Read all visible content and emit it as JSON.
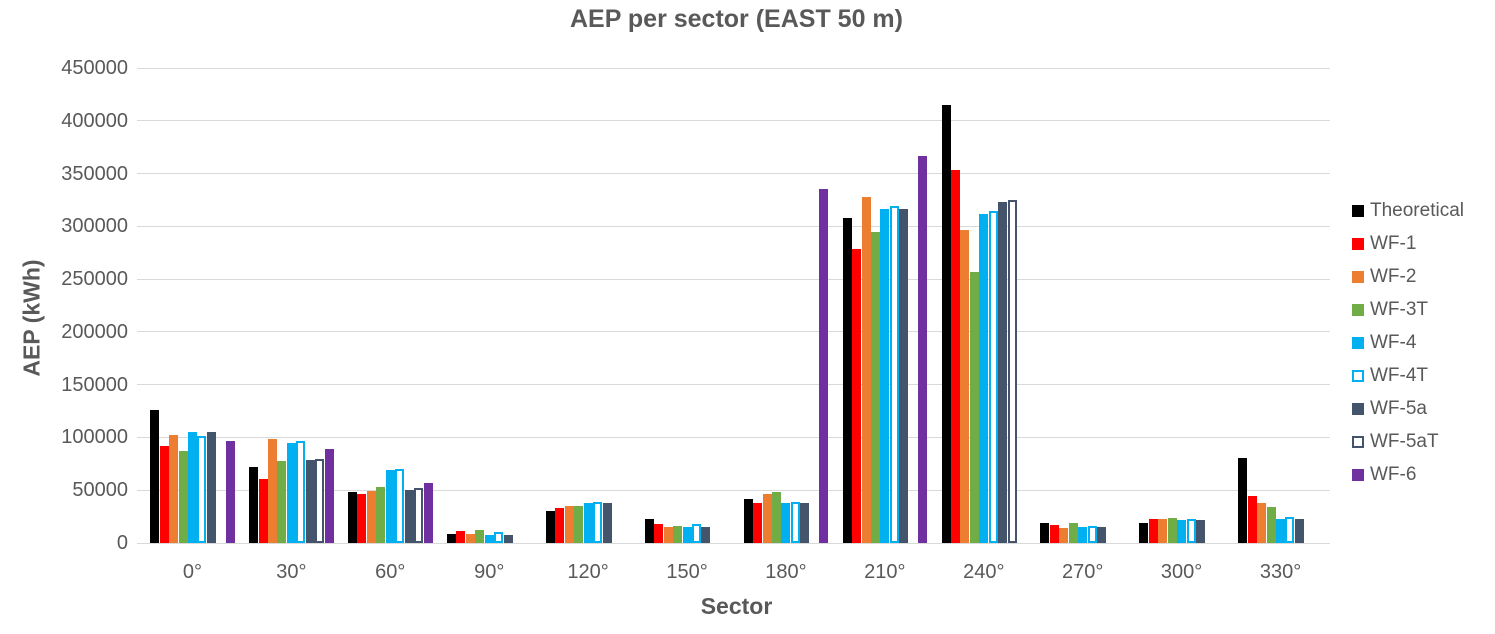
{
  "chart_data": {
    "type": "bar",
    "title": "AEP per sector (EAST 50 m)",
    "xlabel": "Sector",
    "ylabel": "AEP (kWh)",
    "ylim": [
      0,
      450000
    ],
    "yticks": [
      0,
      50000,
      100000,
      150000,
      200000,
      250000,
      300000,
      350000,
      400000,
      450000
    ],
    "grid": true,
    "legend_position": "right",
    "categories": [
      "0°",
      "30°",
      "60°",
      "90°",
      "120°",
      "150°",
      "180°",
      "210°",
      "240°",
      "270°",
      "300°",
      "330°"
    ],
    "series": [
      {
        "name": "Theoretical",
        "color": "#000000",
        "fill": true,
        "values": [
          126000,
          72000,
          48000,
          9000,
          30000,
          23000,
          42000,
          308000,
          415000,
          19000,
          19000,
          81000
        ]
      },
      {
        "name": "WF-1",
        "color": "#FF0000",
        "fill": true,
        "values": [
          92000,
          61000,
          46000,
          11000,
          33000,
          18000,
          38000,
          279000,
          353000,
          17000,
          23000,
          45000
        ]
      },
      {
        "name": "WF-2",
        "color": "#ED7D31",
        "fill": true,
        "values": [
          102000,
          99000,
          49000,
          9000,
          35000,
          15000,
          46000,
          328000,
          297000,
          14000,
          23000,
          38000
        ]
      },
      {
        "name": "WF-3T",
        "color": "#70AD47",
        "fill": true,
        "values": [
          87000,
          78000,
          53000,
          12000,
          35000,
          16000,
          48000,
          295000,
          257000,
          19000,
          24000,
          34000
        ]
      },
      {
        "name": "WF-4",
        "color": "#00B0F0",
        "fill": true,
        "values": [
          105000,
          95000,
          69000,
          8000,
          38000,
          15000,
          38000,
          316000,
          312000,
          15000,
          22000,
          23000
        ]
      },
      {
        "name": "WF-4T",
        "color": "#00B0F0",
        "fill": false,
        "values": [
          101000,
          97000,
          70000,
          10000,
          39000,
          18000,
          39000,
          319000,
          315000,
          16000,
          23000,
          25000
        ]
      },
      {
        "name": "WF-5a",
        "color": "#44546A",
        "fill": true,
        "values": [
          105000,
          79000,
          50000,
          8000,
          38000,
          15000,
          38000,
          316000,
          323000,
          15000,
          22000,
          23000
        ]
      },
      {
        "name": "WF-5aT",
        "color": "#44546A",
        "fill": false,
        "values": [
          0,
          80000,
          52000,
          0,
          0,
          0,
          0,
          0,
          325000,
          0,
          0,
          0
        ]
      },
      {
        "name": "WF-6",
        "color": "#7030A0",
        "fill": true,
        "values": [
          97000,
          89000,
          57000,
          0,
          0,
          0,
          335000,
          367000,
          0,
          0,
          0,
          0
        ]
      }
    ]
  },
  "colors": {
    "text": "#595959",
    "gridline": "#d9d9d9",
    "background": "#ffffff"
  }
}
